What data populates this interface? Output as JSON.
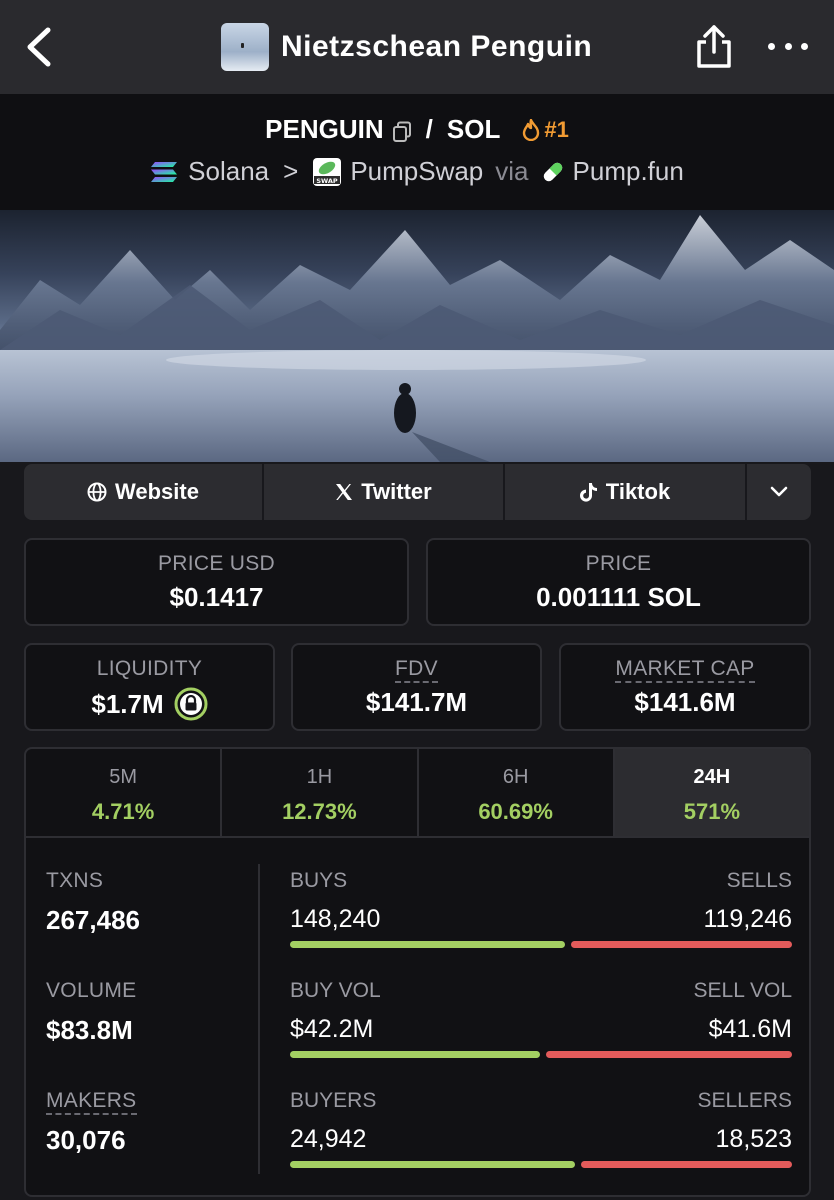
{
  "header": {
    "title": "Nietzschean Penguin"
  },
  "pair": {
    "base": "PENGUIN",
    "slash": "/",
    "quote": "SOL",
    "rank": "#1",
    "chain": "Solana",
    "separator": ">",
    "dex": "PumpSwap",
    "via": "via",
    "launchpad": "Pump.fun"
  },
  "social": {
    "website": "Website",
    "twitter": "Twitter",
    "tiktok": "Tiktok"
  },
  "stats": {
    "price_usd_label": "PRICE USD",
    "price_usd": "$0.1417",
    "price_label": "PRICE",
    "price": "0.001111 SOL",
    "liquidity_label": "LIQUIDITY",
    "liquidity": "$1.7M",
    "fdv_label": "FDV",
    "fdv": "$141.7M",
    "mcap_label": "MARKET CAP",
    "mcap": "$141.6M"
  },
  "timeframes": [
    {
      "label": "5M",
      "change": "4.71%"
    },
    {
      "label": "1H",
      "change": "12.73%"
    },
    {
      "label": "6H",
      "change": "60.69%"
    },
    {
      "label": "24H",
      "change": "571%"
    }
  ],
  "active_timeframe": "24H",
  "metrics": {
    "txns_label": "TXNS",
    "txns": "267,486",
    "volume_label": "VOLUME",
    "volume": "$83.8M",
    "makers_label": "MAKERS",
    "makers": "30,076"
  },
  "split": {
    "buys_label": "BUYS",
    "buys": "148,240",
    "buys_share": 0.554,
    "sells_label": "SELLS",
    "sells": "119,246",
    "buyvol_label": "BUY VOL",
    "buyvol": "$42.2M",
    "buyvol_share": 0.504,
    "sellvol_label": "SELL VOL",
    "sellvol": "$41.6M",
    "buyers_label": "BUYERS",
    "buyers": "24,942",
    "buyers_share": 0.574,
    "sellers_label": "SELLERS",
    "sellers": "18,523"
  },
  "colors": {
    "positive": "#a3cf62",
    "negative": "#e35b5b",
    "rank": "#f19b33"
  }
}
